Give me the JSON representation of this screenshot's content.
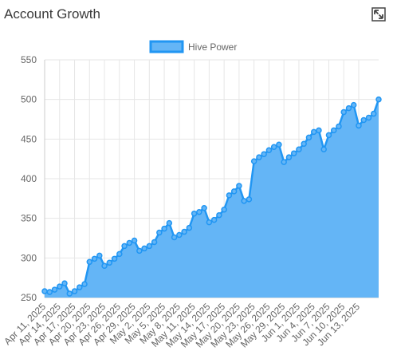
{
  "header": {
    "title": "Account Growth"
  },
  "controls": {
    "expand_icon": "expand-icon"
  },
  "colors": {
    "fill": "#64b5f6",
    "line": "#2196f3",
    "grid": "#e6e6e6",
    "tick": "#666666"
  },
  "chart_data": {
    "type": "area",
    "title": "",
    "xlabel": "",
    "ylabel": "",
    "ylim": [
      250,
      550
    ],
    "yticks": [
      250,
      300,
      350,
      400,
      450,
      500,
      550
    ],
    "grid": true,
    "legend_position": "top-center",
    "xtick_labels": [
      "Apr 11, 2025",
      "Apr 14, 2025",
      "Apr 17, 2025",
      "Apr 20, 2025",
      "Apr 23, 2025",
      "Apr 26, 2025",
      "Apr 29, 2025",
      "May 2, 2025",
      "May 5, 2025",
      "May 8, 2025",
      "May 11, 2025",
      "May 14, 2025",
      "May 17, 2025",
      "May 20, 2025",
      "May 23, 2025",
      "May 26, 2025",
      "May 29, 2025",
      "Jun 1, 2025",
      "Jun 4, 2025",
      "Jun 7, 2025",
      "Jun 10, 2025",
      "Jun 13, 2025"
    ],
    "series": [
      {
        "name": "Hive Power",
        "values": [
          258,
          257,
          260,
          264,
          268,
          255,
          258,
          263,
          267,
          295,
          299,
          303,
          290,
          294,
          299,
          305,
          315,
          319,
          322,
          309,
          312,
          315,
          320,
          332,
          337,
          344,
          326,
          329,
          333,
          338,
          356,
          358,
          363,
          345,
          348,
          354,
          361,
          379,
          384,
          391,
          372,
          374,
          422,
          427,
          431,
          436,
          440,
          443,
          421,
          427,
          432,
          437,
          444,
          452,
          459,
          461,
          437,
          455,
          461,
          466,
          484,
          489,
          493,
          467,
          474,
          477,
          482,
          500
        ]
      }
    ]
  }
}
